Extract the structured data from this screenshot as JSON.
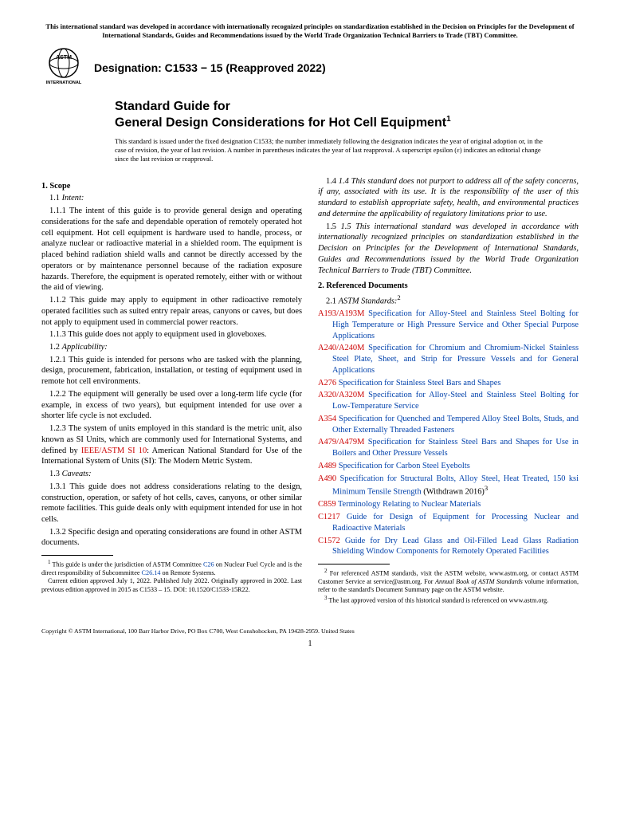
{
  "top_notice": "This international standard was developed in accordance with internationally recognized principles on standardization established in the Decision on Principles for the Development of International Standards, Guides and Recommendations issued by the World Trade Organization Technical Barriers to Trade (TBT) Committee.",
  "logo": {
    "top_text": "ASTM",
    "bottom_text": "INTERNATIONAL"
  },
  "designation": "Designation: C1533 − 15 (Reapproved 2022)",
  "title_line1": "Standard Guide for",
  "title_line2": "General Design Considerations for Hot Cell Equipment",
  "title_sup": "1",
  "issuance_note": "This standard is issued under the fixed designation C1533; the number immediately following the designation indicates the year of original adoption or, in the case of revision, the year of last revision. A number in parentheses indicates the year of last reapproval. A superscript epsilon (ε) indicates an editorial change since the last revision or reapproval.",
  "left": {
    "s1": "1. Scope",
    "s1_1_label": "1.1 ",
    "s1_1_head": "Intent:",
    "s1_1_1": "1.1.1 The intent of this guide is to provide general design and operating considerations for the safe and dependable operation of remotely operated hot cell equipment. Hot cell equipment is hardware used to handle, process, or analyze nuclear or radioactive material in a shielded room. The equipment is placed behind radiation shield walls and cannot be directly accessed by the operators or by maintenance personnel because of the radiation exposure hazards. Therefore, the equipment is operated remotely, either with or without the aid of viewing.",
    "s1_1_2": "1.1.2 This guide may apply to equipment in other radioactive remotely operated facilities such as suited entry repair areas, canyons or caves, but does not apply to equipment used in commercial power reactors.",
    "s1_1_3": "1.1.3 This guide does not apply to equipment used in gloveboxes.",
    "s1_2_label": "1.2 ",
    "s1_2_head": "Applicability:",
    "s1_2_1": "1.2.1 This guide is intended for persons who are tasked with the planning, design, procurement, fabrication, installation, or testing of equipment used in remote hot cell environments.",
    "s1_2_2": "1.2.2 The equipment will generally be used over a long-term life cycle (for example, in excess of two years), but equipment intended for use over a shorter life cycle is not excluded.",
    "s1_2_3a": "1.2.3 The system of units employed in this standard is the metric unit, also known as SI Units, which are commonly used for International Systems, and defined by ",
    "s1_2_3_link": "IEEE/ASTM SI 10",
    "s1_2_3b": ": American National Standard for Use of the International System of Units (SI): The Modern Metric System.",
    "s1_3_label": "1.3 ",
    "s1_3_head": "Caveats:",
    "s1_3_1": "1.3.1 This guide does not address considerations relating to the design, construction, operation, or safety of hot cells, caves, canyons, or other similar remote facilities. This guide deals only with equipment intended for use in hot cells.",
    "s1_3_2": "1.3.2 Specific design and operating considerations are found in other ASTM documents.",
    "fn1a": " This guide is under the jurisdiction of ASTM Committee ",
    "fn1_link1": "C26",
    "fn1b": " on Nuclear Fuel Cycle and is the direct responsibility of Subcommittee ",
    "fn1_link2": "C26.14",
    "fn1c": " on Remote Systems.",
    "fn1d": "Current edition approved July 1, 2022. Published July 2022. Originally approved in 2002. Last previous edition approved in 2015 as C1533 – 15. DOI: 10.1520/C1533-15R22."
  },
  "right": {
    "s1_4": "1.4 This standard does not purport to address all of the safety concerns, if any, associated with its use. It is the responsibility of the user of this standard to establish appropriate safety, health, and environmental practices and determine the applicability of regulatory limitations prior to use.",
    "s1_5": "1.5 This international standard was developed in accordance with internationally recognized principles on standardization established in the Decision on Principles for the Development of International Standards, Guides and Recommendations issued by the World Trade Organization Technical Barriers to Trade (TBT) Committee.",
    "s2": "2. Referenced Documents",
    "s2_1_label": "2.1 ",
    "s2_1_head": "ASTM Standards:",
    "s2_1_sup": "2",
    "refs": [
      {
        "code": "A193/A193M",
        "text": " Specification for Alloy-Steel and Stainless Steel Bolting for High Temperature or High Pressure Service and Other Special Purpose Applications"
      },
      {
        "code": "A240/A240M",
        "text": " Specification for Chromium and Chromium-Nickel Stainless Steel Plate, Sheet, and Strip for Pressure Vessels and for General Applications"
      },
      {
        "code": "A276",
        "text": " Specification for Stainless Steel Bars and Shapes"
      },
      {
        "code": "A320/A320M",
        "text": " Specification for Alloy-Steel and Stainless Steel Bolting for Low-Temperature Service"
      },
      {
        "code": "A354",
        "text": " Specification for Quenched and Tempered Alloy Steel Bolts, Studs, and Other Externally Threaded Fasteners"
      },
      {
        "code": "A479/A479M",
        "text": " Specification for Stainless Steel Bars and Shapes for Use in Boilers and Other Pressure Vessels"
      },
      {
        "code": "A489",
        "text": " Specification for Carbon Steel Eyebolts"
      }
    ],
    "ref_a490_code": "A490",
    "ref_a490_text": " Specification for Structural Bolts, Alloy Steel, Heat Treated, 150 ksi Minimum Tensile Strength",
    "ref_a490_withdrawn": " (Withdrawn 2016)",
    "ref_a490_sup": "3",
    "refs2": [
      {
        "code": "C859",
        "text": " Terminology Relating to Nuclear Materials"
      },
      {
        "code": "C1217",
        "text": " Guide for Design of Equipment for Processing Nuclear and Radioactive Materials"
      },
      {
        "code": "C1572",
        "text": " Guide for Dry Lead Glass and Oil-Filled Lead Glass Radiation Shielding Window Components for Remotely Operated Facilities"
      }
    ],
    "fn2a": " For referenced ASTM standards, visit the ASTM website, www.astm.org, or contact ASTM Customer Service at service@astm.org. For ",
    "fn2b": "Annual Book of ASTM Standards",
    "fn2c": " volume information, refer to the standard's Document Summary page on the ASTM website.",
    "fn3": " The last approved version of this historical standard is referenced on www.astm.org."
  },
  "copyright": "Copyright © ASTM International, 100 Barr Harbor Drive, PO Box C700, West Conshohocken, PA 19428-2959. United States",
  "pagenum": "1"
}
